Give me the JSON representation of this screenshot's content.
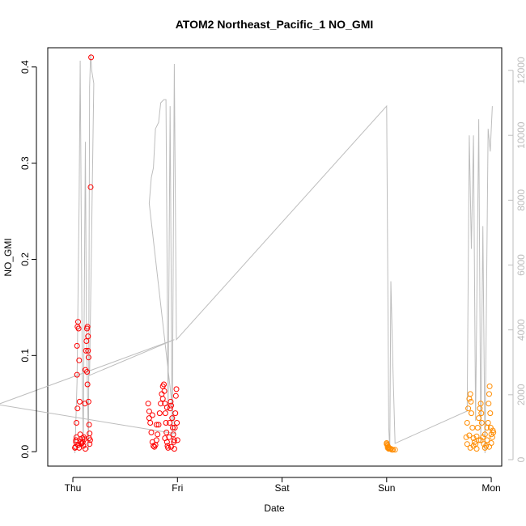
{
  "chart_data": {
    "type": "scatter",
    "title": "ATOM2 Northeast_Pacific_1 NO_GMI",
    "xlabel": "Date",
    "ylabel": "NO_GMI",
    "x_tick_labels": [
      "Thu",
      "Fri",
      "Sat",
      "Sun",
      "Mon"
    ],
    "x_ticks_days": [
      0,
      1,
      2,
      3,
      4
    ],
    "xlim_days": [
      -0.24,
      4.1
    ],
    "ylim": [
      -0.015,
      0.42
    ],
    "y_ticks": [
      0.0,
      0.1,
      0.2,
      0.3,
      0.4
    ],
    "y_tick_labels": [
      "0.0",
      "0.1",
      "0.2",
      "0.3",
      "0.4"
    ],
    "y2_ticks": [
      0,
      2000,
      4000,
      6000,
      8000,
      10000,
      12000
    ],
    "y2_tick_labels": [
      "0",
      "2000",
      "4000",
      "6000",
      "8000",
      "10000",
      "12000"
    ],
    "y2lim": [
      -200,
      12700
    ],
    "colors": {
      "red_series": "#ff0000",
      "orange_series": "#ff8c00",
      "altitude_line": "#bdbdbd"
    },
    "altitude_line": [
      [
        0.02,
        200
      ],
      [
        0.04,
        2400
      ],
      [
        0.06,
        8000
      ],
      [
        0.07,
        12300
      ],
      [
        0.09,
        2600
      ],
      [
        0.1,
        400
      ],
      [
        0.12,
        9800
      ],
      [
        0.13,
        4000
      ],
      [
        0.15,
        300
      ],
      [
        0.16,
        11500
      ],
      [
        0.17,
        12500
      ],
      [
        0.18,
        12000
      ],
      [
        0.19,
        11800
      ],
      [
        0.2,
        11600
      ],
      [
        0.16,
        2600
      ],
      [
        0.97,
        3700
      ],
      [
        -0.72,
        1700
      ],
      [
        0.98,
        800
      ],
      [
        0.73,
        7900
      ],
      [
        0.75,
        8700
      ],
      [
        0.77,
        9000
      ],
      [
        0.79,
        10200
      ],
      [
        0.82,
        10400
      ],
      [
        0.84,
        11000
      ],
      [
        0.87,
        11100
      ],
      [
        0.89,
        11100
      ],
      [
        0.91,
        1500
      ],
      [
        0.93,
        10900
      ],
      [
        0.95,
        500
      ],
      [
        0.97,
        12200
      ],
      [
        0.99,
        3700
      ],
      [
        3.0,
        10900
      ],
      [
        3.02,
        1000
      ],
      [
        3.03,
        300
      ],
      [
        3.04,
        5500
      ],
      [
        3.06,
        2800
      ],
      [
        3.08,
        500
      ],
      [
        3.77,
        1500
      ],
      [
        3.79,
        10000
      ],
      [
        3.81,
        6500
      ],
      [
        3.83,
        10000
      ],
      [
        3.85,
        1200
      ],
      [
        3.88,
        10500
      ],
      [
        3.9,
        500
      ],
      [
        3.92,
        7200
      ],
      [
        3.94,
        200
      ],
      [
        3.97,
        10200
      ],
      [
        3.99,
        9500
      ],
      [
        4.01,
        10900
      ]
    ],
    "series": [
      {
        "color": "red",
        "points": [
          [
            0.02,
            0.004
          ],
          [
            0.03,
            0.012
          ],
          [
            0.035,
            0.03
          ],
          [
            0.04,
            0.08
          ],
          [
            0.04,
            0.11
          ],
          [
            0.045,
            0.13
          ],
          [
            0.05,
            0.135
          ],
          [
            0.055,
            0.128
          ],
          [
            0.06,
            0.095
          ],
          [
            0.065,
            0.052
          ],
          [
            0.07,
            0.018
          ],
          [
            0.075,
            0.01
          ],
          [
            0.08,
            0.008
          ],
          [
            0.09,
            0.014
          ],
          [
            0.1,
            0.006
          ],
          [
            0.11,
            0.013
          ],
          [
            0.115,
            0.05
          ],
          [
            0.12,
            0.085
          ],
          [
            0.125,
            0.105
          ],
          [
            0.13,
            0.115
          ],
          [
            0.135,
            0.128
          ],
          [
            0.14,
            0.13
          ],
          [
            0.145,
            0.12
          ],
          [
            0.15,
            0.098
          ],
          [
            0.15,
            0.052
          ],
          [
            0.155,
            0.028
          ],
          [
            0.16,
            0.019
          ],
          [
            0.165,
            0.012
          ],
          [
            0.17,
            0.275
          ],
          [
            0.175,
            0.41
          ],
          [
            0.16,
            0.008
          ],
          [
            0.025,
            0.005
          ],
          [
            0.05,
            0.007
          ],
          [
            0.085,
            0.009
          ],
          [
            0.095,
            0.01
          ],
          [
            0.105,
            0.015
          ],
          [
            0.14,
            0.07
          ],
          [
            0.045,
            0.045
          ],
          [
            0.035,
            0.015
          ],
          [
            0.03,
            0.01
          ],
          [
            0.06,
            0.004
          ],
          [
            0.12,
            0.003
          ],
          [
            0.155,
            0.014
          ],
          [
            0.145,
            0.105
          ],
          [
            0.135,
            0.083
          ]
        ]
      },
      {
        "color": "red",
        "points": [
          [
            0.72,
            0.05
          ],
          [
            0.73,
            0.042
          ],
          [
            0.74,
            0.03
          ],
          [
            0.75,
            0.02
          ],
          [
            0.76,
            0.01
          ],
          [
            0.77,
            0.006
          ],
          [
            0.78,
            0.005
          ],
          [
            0.79,
            0.007
          ],
          [
            0.8,
            0.012
          ],
          [
            0.81,
            0.018
          ],
          [
            0.82,
            0.028
          ],
          [
            0.83,
            0.04
          ],
          [
            0.84,
            0.05
          ],
          [
            0.85,
            0.06
          ],
          [
            0.86,
            0.068
          ],
          [
            0.87,
            0.07
          ],
          [
            0.875,
            0.063
          ],
          [
            0.88,
            0.05
          ],
          [
            0.885,
            0.04
          ],
          [
            0.89,
            0.03
          ],
          [
            0.895,
            0.02
          ],
          [
            0.9,
            0.01
          ],
          [
            0.905,
            0.006
          ],
          [
            0.91,
            0.004
          ],
          [
            0.92,
            0.015
          ],
          [
            0.925,
            0.03
          ],
          [
            0.93,
            0.045
          ],
          [
            0.935,
            0.052
          ],
          [
            0.94,
            0.048
          ],
          [
            0.95,
            0.035
          ],
          [
            0.955,
            0.025
          ],
          [
            0.96,
            0.018
          ],
          [
            0.965,
            0.01
          ],
          [
            0.97,
            0.012
          ],
          [
            0.975,
            0.025
          ],
          [
            0.98,
            0.04
          ],
          [
            0.985,
            0.058
          ],
          [
            0.99,
            0.065
          ],
          [
            0.995,
            0.03
          ],
          [
            1.0,
            0.012
          ],
          [
            0.73,
            0.035
          ],
          [
            0.76,
            0.038
          ],
          [
            0.8,
            0.028
          ],
          [
            0.86,
            0.055
          ],
          [
            0.9,
            0.046
          ],
          [
            0.94,
            0.005
          ],
          [
            0.97,
            0.003
          ],
          [
            0.88,
            0.014
          ]
        ]
      },
      {
        "color": "orange",
        "points": [
          [
            3.0,
            0.008
          ],
          [
            3.005,
            0.007
          ],
          [
            3.01,
            0.006
          ],
          [
            3.015,
            0.005
          ],
          [
            3.02,
            0.004
          ],
          [
            3.03,
            0.003
          ],
          [
            3.04,
            0.003
          ],
          [
            3.05,
            0.002
          ],
          [
            3.06,
            0.002
          ],
          [
            3.08,
            0.002
          ],
          [
            3.0,
            0.009
          ],
          [
            3.01,
            0.004
          ],
          [
            3.02,
            0.003
          ]
        ]
      },
      {
        "color": "orange",
        "points": [
          [
            3.76,
            0.015
          ],
          [
            3.77,
            0.03
          ],
          [
            3.78,
            0.045
          ],
          [
            3.79,
            0.055
          ],
          [
            3.8,
            0.06
          ],
          [
            3.805,
            0.052
          ],
          [
            3.81,
            0.04
          ],
          [
            3.82,
            0.025
          ],
          [
            3.83,
            0.014
          ],
          [
            3.84,
            0.01
          ],
          [
            3.85,
            0.008
          ],
          [
            3.86,
            0.016
          ],
          [
            3.87,
            0.025
          ],
          [
            3.88,
            0.035
          ],
          [
            3.89,
            0.045
          ],
          [
            3.9,
            0.05
          ],
          [
            3.905,
            0.04
          ],
          [
            3.91,
            0.03
          ],
          [
            3.92,
            0.015
          ],
          [
            3.93,
            0.008
          ],
          [
            3.94,
            0.004
          ],
          [
            3.95,
            0.006
          ],
          [
            3.96,
            0.012
          ],
          [
            3.97,
            0.03
          ],
          [
            3.975,
            0.05
          ],
          [
            3.98,
            0.06
          ],
          [
            3.985,
            0.068
          ],
          [
            3.99,
            0.04
          ],
          [
            3.995,
            0.025
          ],
          [
            4.0,
            0.018
          ],
          [
            4.01,
            0.015
          ],
          [
            4.02,
            0.02
          ],
          [
            3.77,
            0.008
          ],
          [
            3.8,
            0.004
          ],
          [
            3.86,
            0.003
          ],
          [
            3.9,
            0.012
          ],
          [
            3.96,
            0.025
          ],
          [
            4.0,
            0.009
          ],
          [
            3.79,
            0.017
          ],
          [
            3.83,
            0.006
          ],
          [
            3.88,
            0.012
          ],
          [
            3.94,
            0.018
          ],
          [
            3.98,
            0.005
          ],
          [
            4.015,
            0.022
          ]
        ]
      }
    ],
    "grid": false,
    "legend": "none"
  }
}
